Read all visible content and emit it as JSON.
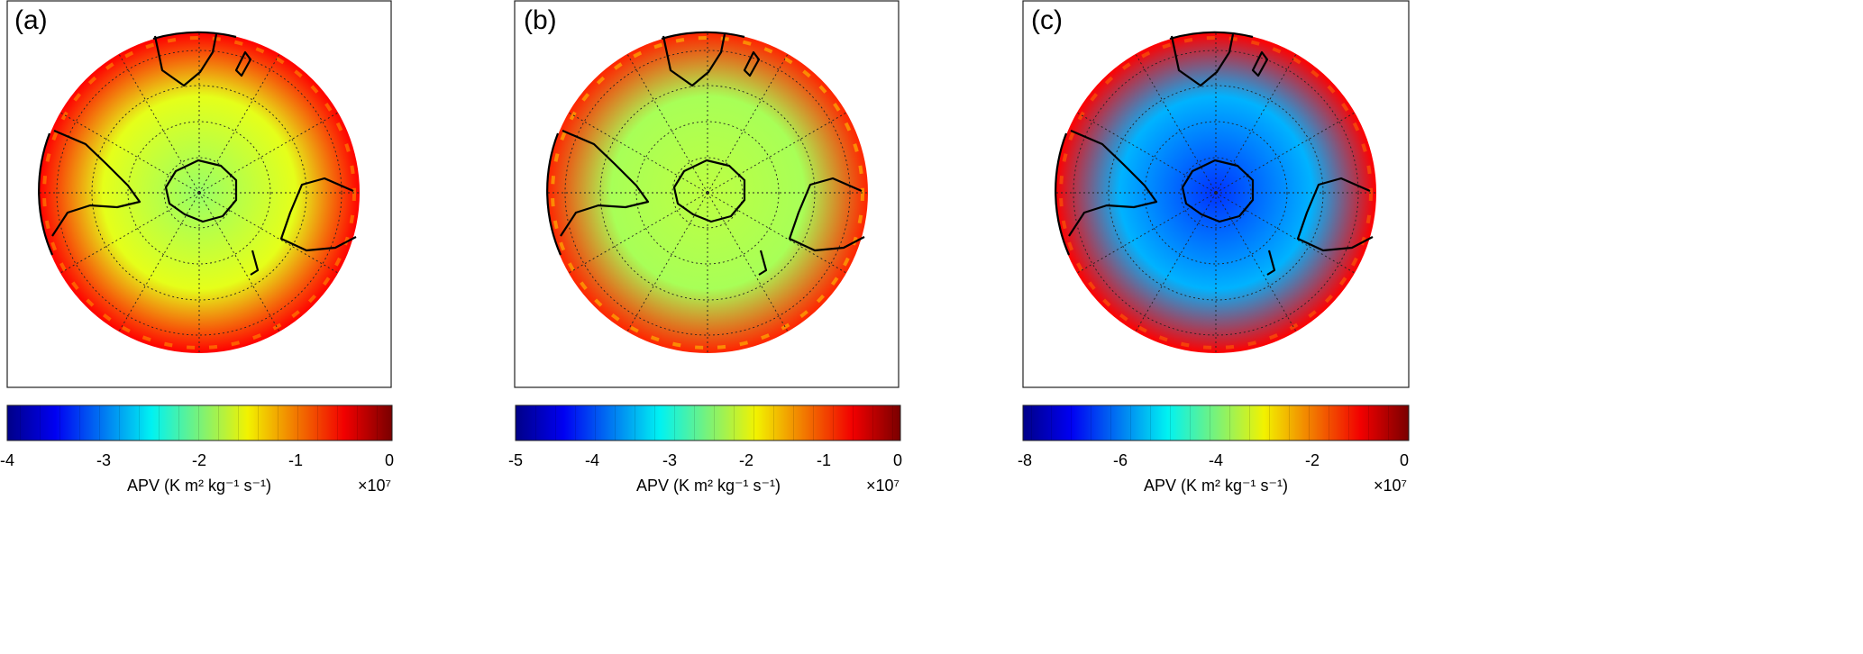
{
  "chart_data": [
    {
      "type": "heatmap",
      "projection": "south-polar-stereographic",
      "panel_label": "(a)",
      "colorbar": {
        "colormap": "jet",
        "range": [
          -4,
          0
        ],
        "ticks": [
          -4,
          -3,
          -2,
          -1,
          0
        ],
        "tick_labels": [
          "-4",
          "-3",
          "-2",
          "-1",
          "0"
        ],
        "label": "APV (K m² kg⁻¹ s⁻¹)",
        "exponent_label": "×10⁷"
      },
      "field_summary": {
        "polar_value": -1.9,
        "mid_value": -1.6,
        "edge_value": -0.5
      }
    },
    {
      "type": "heatmap",
      "projection": "south-polar-stereographic",
      "panel_label": "(b)",
      "colorbar": {
        "colormap": "jet",
        "range": [
          -5,
          0
        ],
        "ticks": [
          -5,
          -4,
          -3,
          -2,
          -1,
          0
        ],
        "tick_labels": [
          "-5",
          "-4",
          "-3",
          "-2",
          "-1",
          "0"
        ],
        "label": "APV (K m² kg⁻¹ s⁻¹)",
        "exponent_label": "×10⁷"
      },
      "field_summary": {
        "polar_value": -2.2,
        "mid_value": -2.3,
        "edge_value": -0.8
      }
    },
    {
      "type": "heatmap",
      "projection": "south-polar-stereographic",
      "panel_label": "(c)",
      "colorbar": {
        "colormap": "jet",
        "range": [
          -8,
          0
        ],
        "ticks": [
          -8,
          -6,
          -4,
          -2,
          0
        ],
        "tick_labels": [
          "-8",
          "-6",
          "-4",
          "-2",
          "0"
        ],
        "label": "APV (K m² kg⁻¹ s⁻¹)",
        "exponent_label": "×10⁷"
      },
      "field_summary": {
        "polar_value": -6.6,
        "mid_value": -5.6,
        "edge_value": -1.0
      }
    }
  ]
}
